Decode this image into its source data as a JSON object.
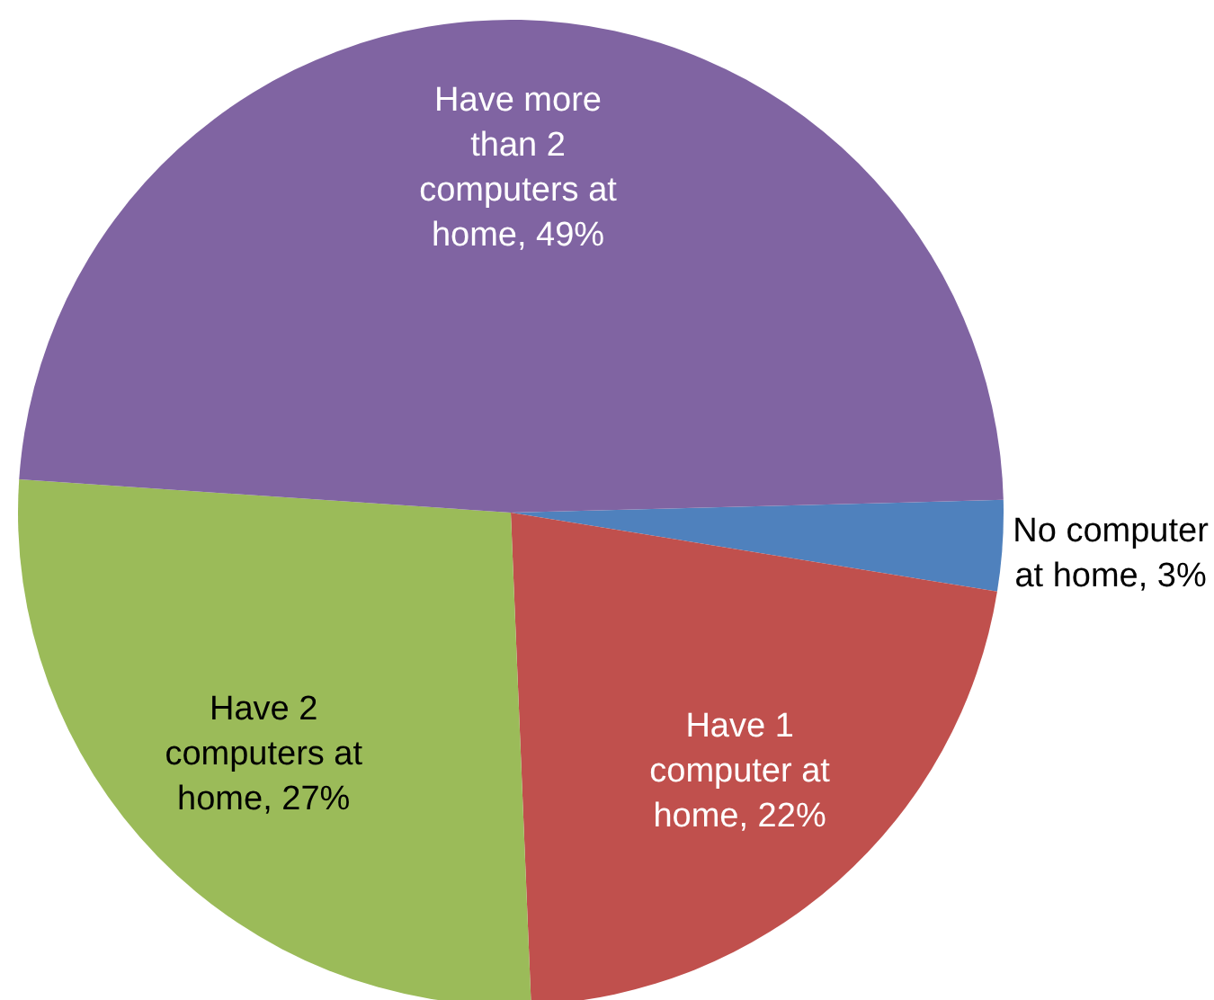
{
  "chart_data": {
    "type": "pie",
    "categories": [
      "No computer at home",
      "Have 1 computer at home",
      "Have 2 computers at home",
      "Have more than 2 computers at home"
    ],
    "values": [
      3,
      22,
      27,
      49
    ],
    "value_labels": [
      "3%",
      "22%",
      "27%",
      "49%"
    ],
    "colors": [
      "#4f81bd",
      "#c0504d",
      "#9bbb59",
      "#8064a2"
    ]
  }
}
